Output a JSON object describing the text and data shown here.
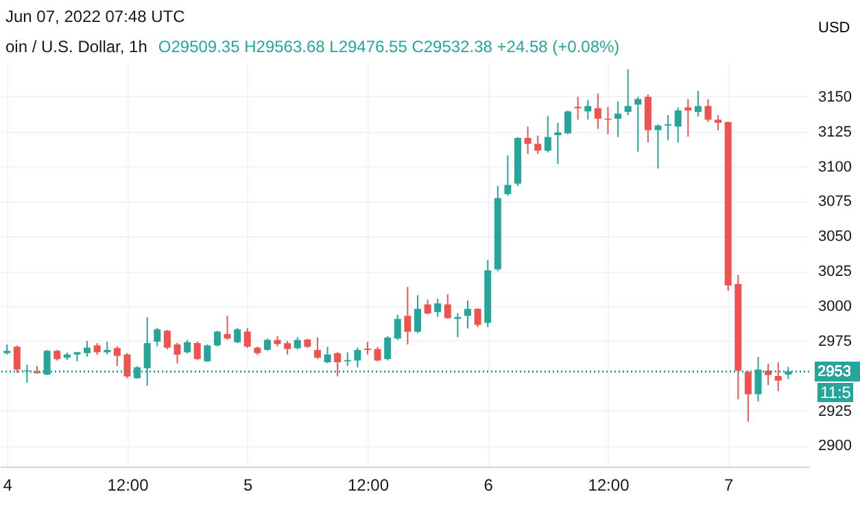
{
  "chart_data": {
    "type": "candlestick",
    "title": "oin / U.S. Dollar, 1h",
    "ylabel": "USD",
    "annotations": [
      "Jun 07, 2022 07:48 UTC",
      "O29509.35 H29563.68 L29476.55 C29532.38 +24.58 (+0.08%)",
      "11:5"
    ],
    "x": [
      "2022-06-04T00:00",
      "2022-06-04T01:00",
      "2022-06-04T02:00",
      "2022-06-04T03:00",
      "2022-06-04T04:00",
      "2022-06-04T05:00",
      "2022-06-04T06:00",
      "2022-06-04T07:00",
      "2022-06-04T08:00",
      "2022-06-04T09:00",
      "2022-06-04T10:00",
      "2022-06-04T11:00",
      "2022-06-04T12:00",
      "2022-06-04T13:00",
      "2022-06-04T14:00",
      "2022-06-04T15:00",
      "2022-06-04T16:00",
      "2022-06-04T17:00",
      "2022-06-04T18:00",
      "2022-06-04T19:00",
      "2022-06-04T20:00",
      "2022-06-04T21:00",
      "2022-06-04T22:00",
      "2022-06-04T23:00",
      "2022-06-05T00:00",
      "2022-06-05T01:00",
      "2022-06-05T02:00",
      "2022-06-05T03:00",
      "2022-06-05T04:00",
      "2022-06-05T05:00",
      "2022-06-05T06:00",
      "2022-06-05T07:00",
      "2022-06-05T08:00",
      "2022-06-05T09:00",
      "2022-06-05T10:00",
      "2022-06-05T11:00",
      "2022-06-05T12:00",
      "2022-06-05T13:00",
      "2022-06-05T14:00",
      "2022-06-05T15:00",
      "2022-06-05T16:00",
      "2022-06-05T17:00",
      "2022-06-05T18:00",
      "2022-06-05T19:00",
      "2022-06-05T20:00",
      "2022-06-05T21:00",
      "2022-06-05T22:00",
      "2022-06-05T23:00",
      "2022-06-06T00:00",
      "2022-06-06T01:00",
      "2022-06-06T02:00",
      "2022-06-06T03:00",
      "2022-06-06T04:00",
      "2022-06-06T05:00",
      "2022-06-06T06:00",
      "2022-06-06T07:00",
      "2022-06-06T08:00",
      "2022-06-06T09:00",
      "2022-06-06T10:00",
      "2022-06-06T11:00",
      "2022-06-06T12:00",
      "2022-06-06T13:00",
      "2022-06-06T14:00",
      "2022-06-06T15:00",
      "2022-06-06T16:00",
      "2022-06-06T17:00",
      "2022-06-06T18:00",
      "2022-06-06T19:00",
      "2022-06-06T20:00",
      "2022-06-06T21:00",
      "2022-06-06T22:00",
      "2022-06-06T23:00",
      "2022-06-07T00:00",
      "2022-06-07T01:00",
      "2022-06-07T02:00",
      "2022-06-07T03:00",
      "2022-06-07T04:00",
      "2022-06-07T05:00",
      "2022-06-07T06:00"
    ],
    "ohlc": [
      [
        2966.3,
        2972.5,
        2965.3,
        2967.9
      ],
      [
        2970.9,
        2971.8,
        2952.2,
        2954.5
      ],
      [
        2953.2,
        2958,
        2945,
        2953.9
      ],
      [
        2953.2,
        2957,
        2951.6,
        2951.9
      ],
      [
        2950.9,
        2968.6,
        2950.6,
        2967.9
      ],
      [
        2967.9,
        2968.6,
        2961,
        2962
      ],
      [
        2963,
        2966.6,
        2961.4,
        2965.3
      ],
      [
        2965.3,
        2967.3,
        2960.4,
        2966.9
      ],
      [
        2966.3,
        2975,
        2963.7,
        2970.2
      ],
      [
        2971.8,
        2973.5,
        2965,
        2966.9
      ],
      [
        2966.9,
        2974.5,
        2965.3,
        2968.6
      ],
      [
        2969.9,
        2971.2,
        2957,
        2964.3
      ],
      [
        2965.3,
        2966.3,
        2948.3,
        2949.6
      ],
      [
        2948.3,
        2957,
        2948,
        2956.1
      ],
      [
        2955.5,
        2992,
        2943,
        2973.5
      ],
      [
        2974.5,
        2984.3,
        2971.2,
        2983.3
      ],
      [
        2982.3,
        2983,
        2969,
        2970.2
      ],
      [
        2972.5,
        2973.8,
        2958.8,
        2965.3
      ],
      [
        2966.9,
        2975.8,
        2966,
        2974.1
      ],
      [
        2973.5,
        2974.5,
        2961.4,
        2962
      ],
      [
        2960.4,
        2972.5,
        2960,
        2971.8
      ],
      [
        2971.8,
        2982.3,
        2971,
        2981.7
      ],
      [
        2980,
        2993,
        2975.8,
        2976.7
      ],
      [
        2974.1,
        2984.3,
        2973.5,
        2983.3
      ],
      [
        2981.7,
        2984.3,
        2970,
        2970.9
      ],
      [
        2970.2,
        2971,
        2965,
        2966.3
      ],
      [
        2968.6,
        2976.7,
        2968,
        2975.8
      ],
      [
        2975.7,
        2978.4,
        2971.2,
        2972.8
      ],
      [
        2973.4,
        2975,
        2965.3,
        2969.2
      ],
      [
        2969.8,
        2977.7,
        2969,
        2975.7
      ],
      [
        2976,
        2976.5,
        2970,
        2970.8
      ],
      [
        2968.5,
        2977.4,
        2962,
        2963
      ],
      [
        2959.7,
        2970.8,
        2959,
        2965.3
      ],
      [
        2966.2,
        2967,
        2949.6,
        2959.7
      ],
      [
        2960.4,
        2966.9,
        2957.1,
        2961.3
      ],
      [
        2961,
        2970.2,
        2956.1,
        2968.5
      ],
      [
        2969.5,
        2974.4,
        2965.3,
        2968.5
      ],
      [
        2969.2,
        2970.8,
        2960.4,
        2961
      ],
      [
        2962,
        2978.4,
        2961,
        2977.4
      ],
      [
        2976.7,
        2993.7,
        2975.7,
        2990.8
      ],
      [
        2993,
        3013.7,
        2972.5,
        2981.6
      ],
      [
        2981.6,
        3007.8,
        2980.6,
        2998
      ],
      [
        3001.2,
        3004.5,
        2994,
        2994.7
      ],
      [
        2995.7,
        3005.2,
        2992.4,
        3001.9
      ],
      [
        3001.2,
        3008.4,
        2990.8,
        2991.4
      ],
      [
        2990.8,
        2995,
        2977.7,
        2992.1
      ],
      [
        2993,
        3003.9,
        2983.9,
        2998
      ],
      [
        2998,
        2998.5,
        2984.9,
        2986.5
      ],
      [
        2988,
        3033,
        2984.9,
        3025.6
      ],
      [
        3026.3,
        3086.1,
        3025,
        3077.3
      ],
      [
        3080.2,
        3108,
        3079,
        3086.8
      ],
      [
        3087.7,
        3121,
        3086,
        3120.4
      ],
      [
        3120.4,
        3128.6,
        3109,
        3116.2
      ],
      [
        3116.2,
        3122.1,
        3109,
        3111.3
      ],
      [
        3111.3,
        3136.1,
        3110,
        3121.1
      ],
      [
        3122.4,
        3131.2,
        3101.8,
        3124.4
      ],
      [
        3123.7,
        3140,
        3123,
        3139.4
      ],
      [
        3142.7,
        3149.9,
        3133.5,
        3141.7
      ],
      [
        3139.4,
        3147.6,
        3133.5,
        3143.3
      ],
      [
        3141.7,
        3152.2,
        3127,
        3134.2
      ],
      [
        3134.2,
        3142.7,
        3123.1,
        3133.5
      ],
      [
        3134.2,
        3146.6,
        3121.1,
        3137.8
      ],
      [
        3139.1,
        3169.5,
        3136.8,
        3143.3
      ],
      [
        3144.3,
        3149.9,
        3110.6,
        3148.3
      ],
      [
        3149.9,
        3151.5,
        3117.2,
        3126
      ],
      [
        3126,
        3130.2,
        3098.5,
        3129.3
      ],
      [
        3129.3,
        3136.8,
        3118.8,
        3130.2
      ],
      [
        3128.6,
        3142.3,
        3117.2,
        3140.1
      ],
      [
        3142.3,
        3148.2,
        3121.4,
        3140.1
      ],
      [
        3139.1,
        3154.1,
        3135.8,
        3143.3
      ],
      [
        3143.3,
        3148.2,
        3131.9,
        3133.5
      ],
      [
        3133.5,
        3136.8,
        3126,
        3131.2
      ],
      [
        3131.9,
        3132,
        3010.9,
        3014.8
      ],
      [
        3015.8,
        3022.3,
        2933.1,
        2953.7
      ],
      [
        2952.8,
        2953.5,
        2917.2,
        2936.8
      ],
      [
        2936.8,
        2963.6,
        2931.6,
        2954.5
      ],
      [
        2953.8,
        2958.7,
        2943.4,
        2950.6
      ],
      [
        2949.9,
        2959.7,
        2939.1,
        2946.6
      ],
      [
        2950.935,
        2956.368,
        2947.655,
        2953.238
      ]
    ],
    "colors": [
      "#26a69a",
      "#ef5350",
      "#26a69a",
      "#ef5350",
      "#26a69a",
      "#ef5350",
      "#26a69a",
      "#26a69a",
      "#26a69a",
      "#ef5350",
      "#26a69a",
      "#ef5350",
      "#ef5350",
      "#26a69a",
      "#26a69a",
      "#26a69a",
      "#ef5350",
      "#ef5350",
      "#26a69a",
      "#ef5350",
      "#26a69a",
      "#26a69a",
      "#ef5350",
      "#26a69a",
      "#ef5350",
      "#ef5350",
      "#26a69a",
      "#ef5350",
      "#ef5350",
      "#26a69a",
      "#ef5350",
      "#ef5350",
      "#26a69a",
      "#ef5350",
      "#26a69a",
      "#26a69a",
      "#ef5350",
      "#ef5350",
      "#26a69a",
      "#26a69a",
      "#ef5350",
      "#26a69a",
      "#ef5350",
      "#26a69a",
      "#ef5350",
      "#26a69a",
      "#26a69a",
      "#ef5350",
      "#26a69a",
      "#26a69a",
      "#26a69a",
      "#26a69a",
      "#ef5350",
      "#ef5350",
      "#26a69a",
      "#26a69a",
      "#26a69a",
      "#ef5350",
      "#26a69a",
      "#ef5350",
      "#ef5350",
      "#26a69a",
      "#26a69a",
      "#26a69a",
      "#ef5350",
      "#26a69a",
      "#26a69a",
      "#26a69a",
      "#ef5350",
      "#26a69a",
      "#ef5350",
      "#ef5350",
      "#ef5350",
      "#ef5350",
      "#ef5350",
      "#26a69a",
      "#ef5350",
      "#ef5350",
      "#26a69a"
    ],
    "xlim": [
      "2022-06-03T23:18",
      "2022-06-07T08:06"
    ],
    "xticks": [
      {
        "value": "2022-06-04T00:00",
        "label": "4"
      },
      {
        "value": "2022-06-04T12:00",
        "label": "12:00"
      },
      {
        "value": "2022-06-05T00:00",
        "label": "5"
      },
      {
        "value": "2022-06-05T12:00",
        "label": "12:00"
      },
      {
        "value": "2022-06-06T00:00",
        "label": "6"
      },
      {
        "value": "2022-06-06T12:00",
        "label": "12:00"
      },
      {
        "value": "2022-06-07T00:00",
        "label": "7"
      }
    ],
    "ylim": [
      2885,
      3175
    ],
    "yticks": [
      2900,
      2925,
      2975,
      3000,
      3025,
      3050,
      3075,
      3100,
      3125,
      3150
    ],
    "ref_lines": [
      {
        "axis": "y",
        "value": 2953,
        "label": "2953",
        "color": "#26a69a",
        "line_style": "dotted"
      }
    ],
    "grid": true
  }
}
